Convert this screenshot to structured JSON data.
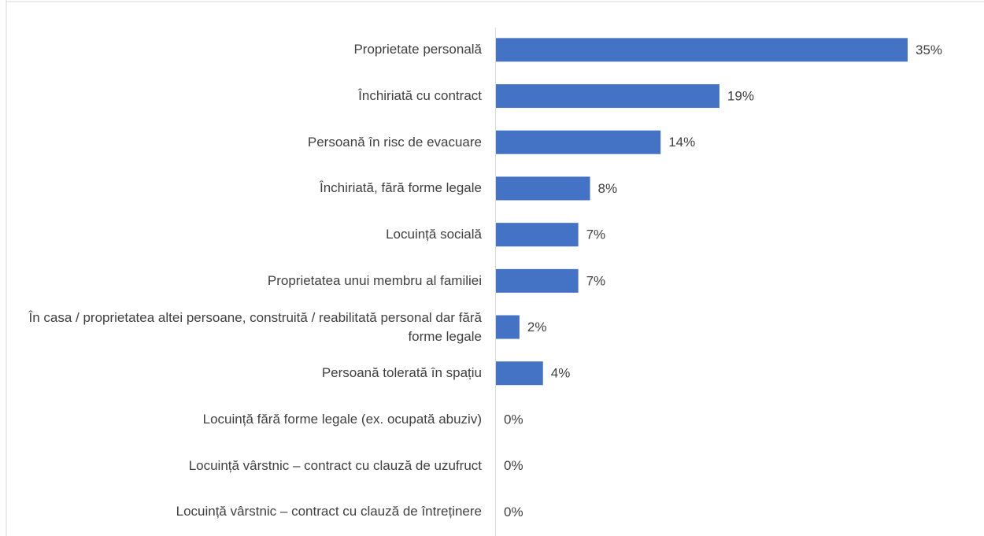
{
  "chart_data": {
    "type": "bar",
    "orientation": "horizontal",
    "categories": [
      "Proprietate personală",
      "Închiriată cu contract",
      "Persoană în risc de evacuare",
      "Închiriată, fără forme legale",
      "Locuință socială",
      "Proprietatea unui membru al familiei",
      "În casa / proprietatea altei persoane, construită / reabilitată personal dar fără forme legale",
      "Persoană tolerată în spațiu",
      "Locuință fără forme legale (ex. ocupată abuziv)",
      "Locuință vârstnic – contract cu clauză de uzufruct",
      "Locuință vârstnic – contract cu clauză de întreținere"
    ],
    "values": [
      35,
      19,
      14,
      8,
      7,
      7,
      2,
      4,
      0,
      0,
      0
    ],
    "value_labels": [
      "35%",
      "19%",
      "14%",
      "8%",
      "7%",
      "7%",
      "2%",
      "4%",
      "0%",
      "0%",
      "0%"
    ],
    "color": "#4472c4"
  }
}
